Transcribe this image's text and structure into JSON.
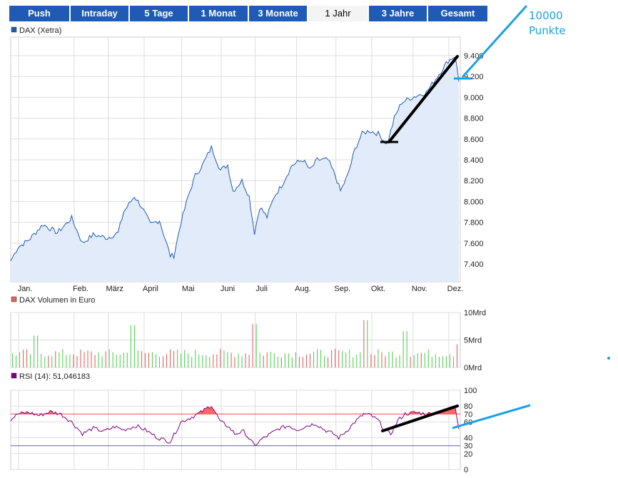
{
  "tabs": [
    "Push",
    "Intraday",
    "5 Tage",
    "1 Monat",
    "3 Monate",
    "1 Jahr",
    "3 Jahre",
    "Gesamt"
  ],
  "active_tab": "1 Jahr",
  "annotation": {
    "line1": "10000",
    "line2": "Punkte"
  },
  "colors": {
    "tab": "#1f5bb5",
    "line": "#1f5bb5",
    "fill": "#e2ebf9",
    "up": "#44cc44",
    "down": "#dd5555",
    "rsi": "#800080",
    "rsi_fill": "#ff6666",
    "annot_blue": "#1aa0e8"
  },
  "chart_data": [
    {
      "type": "area",
      "title": "DAX (Xetra)",
      "ylim": [
        7250,
        9500
      ],
      "yticks": [
        "7.400",
        "7.600",
        "7.800",
        "8.000",
        "8.200",
        "8.400",
        "8.600",
        "8.800",
        "9.000",
        "9.200",
        "9.400"
      ],
      "ytick_values": [
        7400,
        7600,
        7800,
        8000,
        8200,
        8400,
        8600,
        8800,
        9000,
        9200,
        9400
      ],
      "xticks": [
        {
          "label": "Jan.",
          "day": 8
        },
        {
          "label": "Feb.",
          "day": 39
        },
        {
          "label": "März",
          "day": 58
        },
        {
          "label": "April",
          "day": 78
        },
        {
          "label": "Mai",
          "day": 99
        },
        {
          "label": "Juni",
          "day": 121
        },
        {
          "label": "Juli",
          "day": 140
        },
        {
          "label": "Aug.",
          "day": 163
        },
        {
          "label": "Sep.",
          "day": 185
        },
        {
          "label": "Okt.",
          "day": 205
        },
        {
          "label": "Nov.",
          "day": 228
        },
        {
          "label": "Dez.",
          "day": 248
        }
      ],
      "points": [
        [
          0,
          7430
        ],
        [
          4,
          7560
        ],
        [
          10,
          7630
        ],
        [
          18,
          7780
        ],
        [
          26,
          7700
        ],
        [
          34,
          7840
        ],
        [
          40,
          7600
        ],
        [
          46,
          7680
        ],
        [
          54,
          7650
        ],
        [
          60,
          7700
        ],
        [
          63,
          7900
        ],
        [
          69,
          8050
        ],
        [
          73,
          7950
        ],
        [
          78,
          7780
        ],
        [
          83,
          7820
        ],
        [
          89,
          7480
        ],
        [
          91,
          7480
        ],
        [
          95,
          7800
        ],
        [
          99,
          8050
        ],
        [
          103,
          8250
        ],
        [
          107,
          8350
        ],
        [
          112,
          8520
        ],
        [
          117,
          8300
        ],
        [
          121,
          8350
        ],
        [
          124,
          8100
        ],
        [
          129,
          8200
        ],
        [
          133,
          8050
        ],
        [
          136,
          7700
        ],
        [
          139,
          7950
        ],
        [
          143,
          7850
        ],
        [
          147,
          8050
        ],
        [
          151,
          8150
        ],
        [
          157,
          8350
        ],
        [
          163,
          8400
        ],
        [
          167,
          8300
        ],
        [
          171,
          8400
        ],
        [
          177,
          8400
        ],
        [
          181,
          8250
        ],
        [
          184,
          8100
        ],
        [
          188,
          8250
        ],
        [
          192,
          8500
        ],
        [
          196,
          8650
        ],
        [
          200,
          8680
        ],
        [
          205,
          8650
        ],
        [
          210,
          8550
        ],
        [
          214,
          8800
        ],
        [
          218,
          8950
        ],
        [
          224,
          9000
        ],
        [
          232,
          9050
        ],
        [
          238,
          9200
        ],
        [
          244,
          9350
        ],
        [
          248,
          9400
        ],
        [
          250,
          9150
        ]
      ]
    },
    {
      "type": "bar",
      "title": "DAX Volumen in Euro",
      "ylim": [
        0,
        10
      ],
      "yticks": [
        "0Mrd",
        "5Mrd",
        "10Mrd"
      ],
      "ytick_values": [
        0,
        5,
        10
      ],
      "base_mrd": 2.6,
      "spikes": [
        [
          14,
          5.8
        ],
        [
          68,
          7.7
        ],
        [
          136,
          7.9
        ],
        [
          198,
          8.6
        ],
        [
          220,
          6.6
        ],
        [
          249,
          4.2
        ]
      ]
    },
    {
      "type": "line",
      "title": "RSI (14): 51,046183",
      "ylim": [
        0,
        100
      ],
      "yticks": [
        "0",
        "20",
        "30",
        "40",
        "60",
        "70",
        "80",
        "100"
      ],
      "ytick_values": [
        0,
        20,
        30,
        40,
        60,
        70,
        80,
        100
      ],
      "lines": [
        {
          "value": 70,
          "color": "#ff4444"
        },
        {
          "value": 30,
          "color": "#5555ff"
        }
      ],
      "points": [
        [
          0,
          63
        ],
        [
          4,
          70
        ],
        [
          10,
          72
        ],
        [
          16,
          68
        ],
        [
          22,
          73
        ],
        [
          28,
          70
        ],
        [
          34,
          60
        ],
        [
          40,
          45
        ],
        [
          46,
          52
        ],
        [
          52,
          48
        ],
        [
          58,
          54
        ],
        [
          63,
          50
        ],
        [
          70,
          55
        ],
        [
          75,
          50
        ],
        [
          82,
          40
        ],
        [
          89,
          35
        ],
        [
          95,
          60
        ],
        [
          100,
          65
        ],
        [
          106,
          72
        ],
        [
          112,
          81
        ],
        [
          117,
          60
        ],
        [
          121,
          55
        ],
        [
          125,
          45
        ],
        [
          130,
          48
        ],
        [
          136,
          30
        ],
        [
          140,
          38
        ],
        [
          145,
          45
        ],
        [
          150,
          52
        ],
        [
          155,
          55
        ],
        [
          160,
          50
        ],
        [
          165,
          55
        ],
        [
          170,
          58
        ],
        [
          175,
          50
        ],
        [
          180,
          45
        ],
        [
          183,
          40
        ],
        [
          188,
          50
        ],
        [
          192,
          60
        ],
        [
          197,
          70
        ],
        [
          201,
          68
        ],
        [
          205,
          62
        ],
        [
          209,
          48
        ],
        [
          212,
          45
        ],
        [
          216,
          62
        ],
        [
          220,
          70
        ],
        [
          226,
          72
        ],
        [
          232,
          70
        ],
        [
          238,
          72
        ],
        [
          244,
          75
        ],
        [
          248,
          80
        ],
        [
          250,
          51
        ]
      ]
    }
  ]
}
